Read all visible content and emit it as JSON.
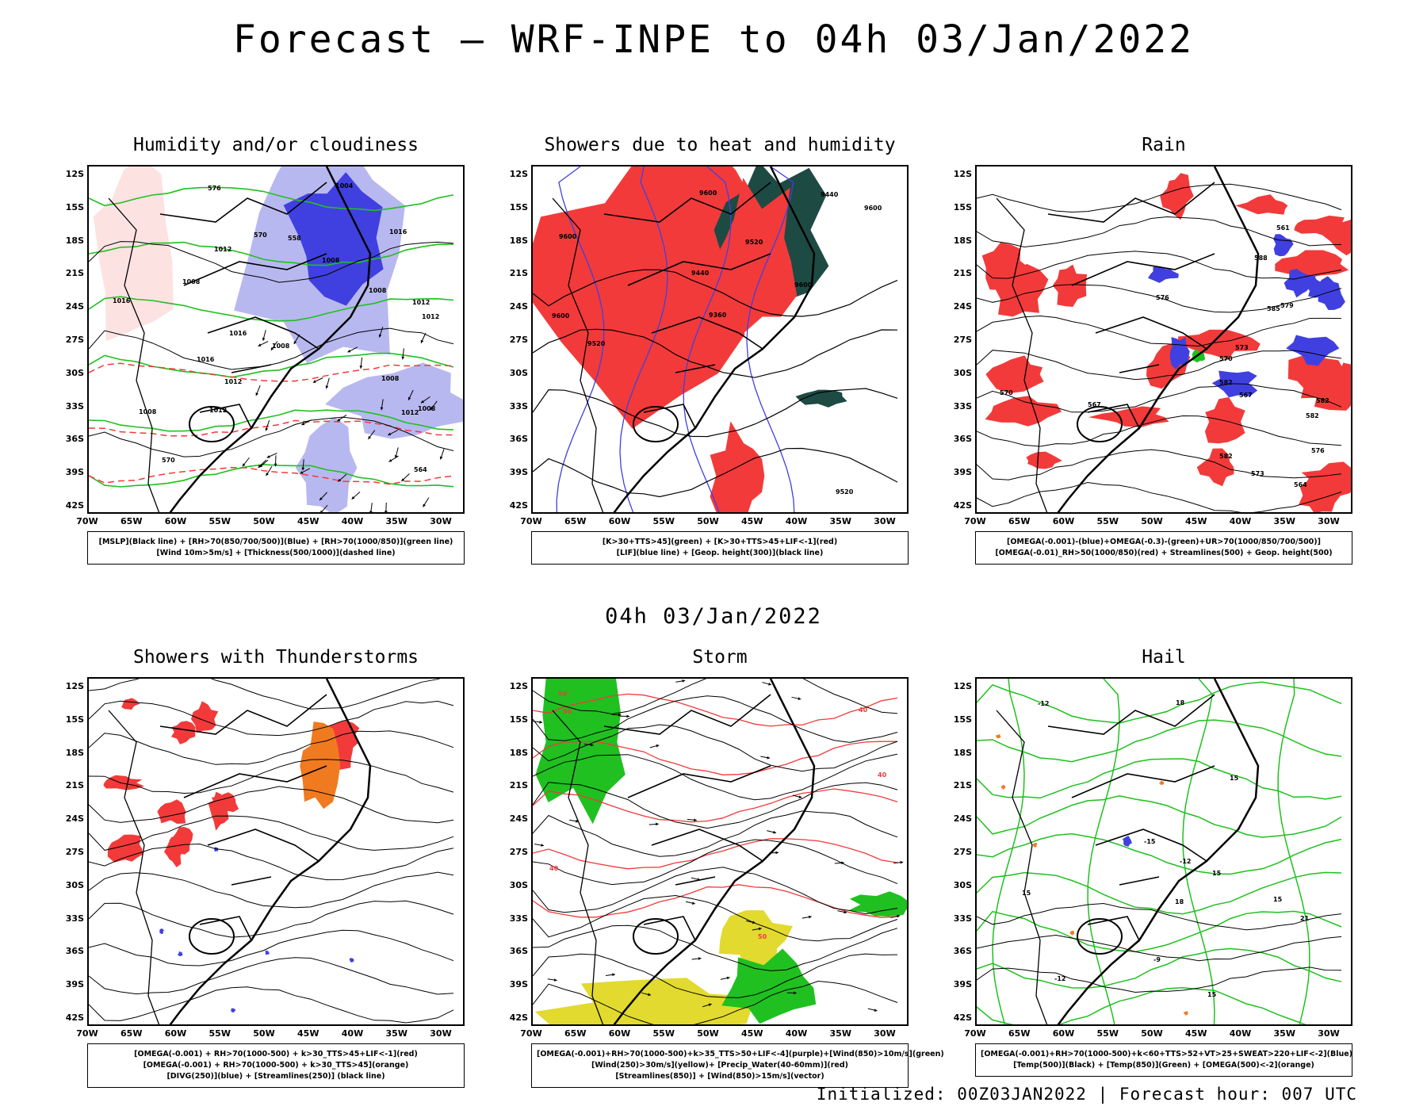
{
  "title": "Forecast — WRF-INPE to 04h 03/Jan/2022",
  "subtitle": "04h 03/Jan/2022",
  "footer": "Initialized: 00Z03JAN2022 | Forecast hour: 007 UTC",
  "axes": {
    "lat_labels": [
      "12S",
      "15S",
      "18S",
      "21S",
      "24S",
      "27S",
      "30S",
      "33S",
      "36S",
      "39S",
      "42S"
    ],
    "lon_labels": [
      "70W",
      "65W",
      "60W",
      "55W",
      "50W",
      "45W",
      "40W",
      "35W",
      "30W"
    ]
  },
  "colors": {
    "red": "#f23a3a",
    "blue": "#4040e0",
    "lightblue": "#b8b8f0",
    "green": "#20c020",
    "darkgreen": "#1e4a44",
    "yellow": "#e2da2e",
    "orange": "#f07a20",
    "black": "#000000"
  },
  "panels": [
    {
      "id": "humidity",
      "title": "Humidity and/or cloudiness",
      "legend": [
        "[MSLP](Black line) + [RH>70(850/700/500)](Blue) + [RH>70(1000/850)](green line)",
        "[Wind 10m>5m/s] + [Thickness(500/1000)](dashed line)"
      ],
      "contour_labels": [
        "1012",
        "1012",
        "1008",
        "1012",
        "1016",
        "1008",
        "1012",
        "1004",
        "1012",
        "1016",
        "1008",
        "1008",
        "1008",
        "1012",
        "1008",
        "1008",
        "1016",
        "1016",
        "576",
        "570",
        "564",
        "558",
        "570"
      ]
    },
    {
      "id": "showers-heat",
      "title": "Showers due to heat and humidity",
      "legend": [
        "[K>30+TTS>45](green) + [K>30+TTS>45+LIF<-1](red)",
        "[LIF](blue line) + [Geop. height(300)](black line)"
      ],
      "contour_labels": [
        "9600",
        "9600",
        "9600",
        "9600",
        "9600",
        "9520",
        "9520",
        "9520",
        "9440",
        "9440",
        "9360"
      ]
    },
    {
      "id": "rain",
      "title": "Rain",
      "legend": [
        "[OMEGA(-0.001)-(blue)+OMEGA(-0.3)-(green)+UR>70(1000/850/700/500)]",
        "[OMEGA(-0.01)_RH>50(1000/850)(red) + Streamlines(500) + Geop. height(500)"
      ],
      "contour_labels": [
        "582",
        "582",
        "585",
        "582",
        "582",
        "588",
        "579",
        "576",
        "576",
        "573",
        "573",
        "570",
        "570",
        "567",
        "567",
        "564",
        "561"
      ]
    },
    {
      "id": "thunderstorms",
      "title": "Showers with Thunderstorms",
      "legend": [
        "[OMEGA(-0.001) + RH>70(1000-500) + k>30_TTS>45+LIF<-1](red)",
        "[OMEGA(-0.001) + RH>70(1000-500) + k>30_TTS>45](orange)",
        "[DIVG(250)](blue) + [Streamlines(250)] (black line)"
      ]
    },
    {
      "id": "storm",
      "title": "Storm",
      "legend": [
        "[OMEGA(-0.001)+RH>70(1000-500)+k>35_TTS>50+LIF<-4](purple)+[Wind(850)>10m/s](green)",
        "[Wind(250)>30m/s](yellow)+ [Precip_Water(40-60mm)](red)",
        "[Streamlines(850)] + [Wind(850)>15m/s](vector)"
      ],
      "contour_labels": [
        "50",
        "50",
        "40",
        "40",
        "40",
        "50"
      ]
    },
    {
      "id": "hail",
      "title": "Hail",
      "legend": [
        "[OMEGA(-0.001)+RH>70(1000-500)+k<60+TTS>52+VT>25+SWEAT>220+LIF<-2](Blue)",
        "[Temp(500)](Black) + [Temp(850)](Green) + [OMEGA(500)<-2](orange)"
      ],
      "contour_labels": [
        "15",
        "18",
        "15",
        "21",
        "15",
        "18",
        "-12",
        "-12",
        "-12",
        "15",
        "-9",
        "-15",
        "15"
      ]
    }
  ]
}
